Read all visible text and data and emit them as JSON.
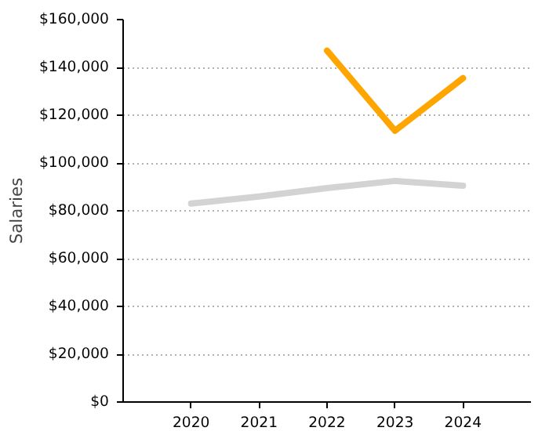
{
  "chart_data": {
    "type": "line",
    "ylabel": "Salaries",
    "x": [
      2020,
      2021,
      2022,
      2023,
      2024
    ],
    "series": [
      {
        "color": "#d3d3d3",
        "values": [
          83000,
          86000,
          89500,
          92500,
          90500
        ]
      },
      {
        "color": "#ffa500",
        "values": [
          null,
          null,
          147000,
          113500,
          135500
        ]
      }
    ],
    "xlim": [
      2019,
      2025
    ],
    "xticks": [
      2020,
      2021,
      2022,
      2023,
      2024
    ],
    "ylim": [
      0,
      160000
    ],
    "yticks": [
      {
        "value": 0,
        "label": "$0"
      },
      {
        "value": 20000,
        "label": "$20,000"
      },
      {
        "value": 40000,
        "label": "$40,000"
      },
      {
        "value": 60000,
        "label": "$60,000"
      },
      {
        "value": 80000,
        "label": "$80,000"
      },
      {
        "value": 100000,
        "label": "$100,000"
      },
      {
        "value": 120000,
        "label": "$120,000"
      },
      {
        "value": 140000,
        "label": "$140,000"
      },
      {
        "value": 160000,
        "label": "$160,000"
      }
    ],
    "grid": "y",
    "marker": "none",
    "line_style": "solid"
  }
}
